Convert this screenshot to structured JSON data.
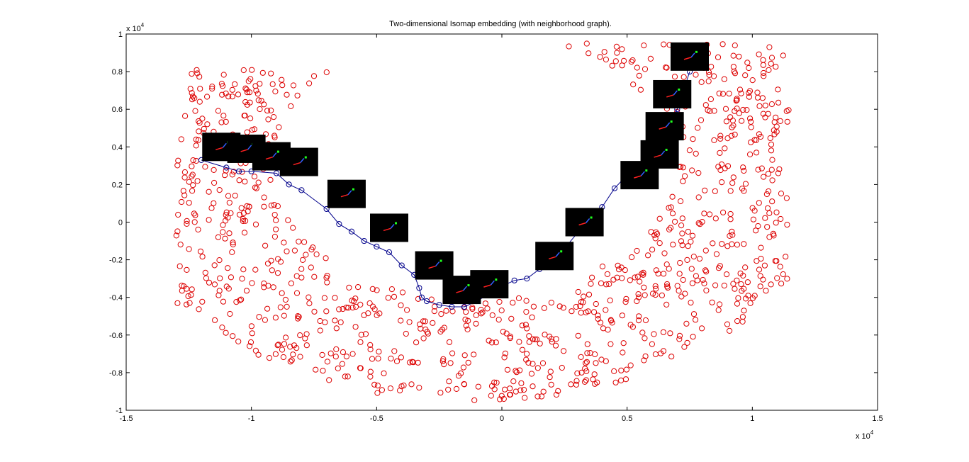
{
  "chart_data": {
    "type": "scatter",
    "title": "Two-dimensional Isomap embedding (with neighborhood graph).",
    "xlabel": "",
    "ylabel": "",
    "x_exponent_label": "x 10",
    "x_exponent_power": "4",
    "y_exponent_label": "x 10",
    "y_exponent_power": "4",
    "xlim": [
      -15000,
      15000
    ],
    "ylim": [
      -10000,
      10000
    ],
    "x_ticks": [
      -15000,
      -10000,
      -5000,
      0,
      5000,
      10000,
      15000
    ],
    "x_tick_labels": [
      "-1.5",
      "-1",
      "-0.5",
      "0",
      "0.5",
      "1",
      "1.5"
    ],
    "y_ticks": [
      -10000,
      -8000,
      -6000,
      -4000,
      -2000,
      0,
      2000,
      4000,
      6000,
      8000,
      10000
    ],
    "y_tick_labels": [
      "-1",
      "-0.8",
      "-0.6",
      "-0.4",
      "-0.2",
      "0",
      "0.2",
      "0.4",
      "0.6",
      "0.8",
      "1"
    ],
    "grid": false,
    "point_count": 1000,
    "colors": {
      "points": "#dd0000",
      "path": "#00008b",
      "thumbnail_bg": "#000000"
    },
    "series": [
      {
        "marker": "circle-open",
        "color": "#dd0000"
      },
      {
        "marker": "circle-open-line",
        "color": "#00008b",
        "x": [
          -12000,
          -11000,
          -10500,
          -10000,
          -9000,
          -8500,
          -8000,
          -7000,
          -6500,
          -6000,
          -5500,
          -5000,
          -4500,
          -4000,
          -3500,
          -3300,
          -3200,
          -3000,
          -2500,
          -2000,
          -1500,
          -1000,
          -500,
          0,
          500,
          1000,
          1500,
          2000,
          2500,
          3000,
          3500,
          4000,
          4500,
          5000,
          5500,
          6000,
          6500,
          7000,
          7500
        ],
        "y": [
          3300,
          2900,
          2700,
          2700,
          2600,
          2000,
          1700,
          700,
          -100,
          -500,
          -1000,
          -1300,
          -1600,
          -2300,
          -2800,
          -3500,
          -4000,
          -4200,
          -4400,
          -4500,
          -4500,
          -4200,
          -3800,
          -3400,
          -3100,
          -3000,
          -2500,
          -2000,
          -1400,
          -600,
          200,
          800,
          1800,
          2500,
          3000,
          3800,
          4800,
          6000,
          8000
        ]
      }
    ],
    "thumbnails": [
      {
        "x": -11200,
        "y": 4000
      },
      {
        "x": -10200,
        "y": 3900
      },
      {
        "x": -9200,
        "y": 3500
      },
      {
        "x": -8100,
        "y": 3200
      },
      {
        "x": -6200,
        "y": 1500
      },
      {
        "x": -4500,
        "y": -300
      },
      {
        "x": -2700,
        "y": -2300
      },
      {
        "x": -1600,
        "y": -3600
      },
      {
        "x": -500,
        "y": -3300
      },
      {
        "x": 2100,
        "y": -1800
      },
      {
        "x": 3300,
        "y": 0
      },
      {
        "x": 5500,
        "y": 2500
      },
      {
        "x": 6300,
        "y": 3600
      },
      {
        "x": 6500,
        "y": 5100
      },
      {
        "x": 6800,
        "y": 6800
      },
      {
        "x": 7500,
        "y": 8800
      }
    ]
  }
}
